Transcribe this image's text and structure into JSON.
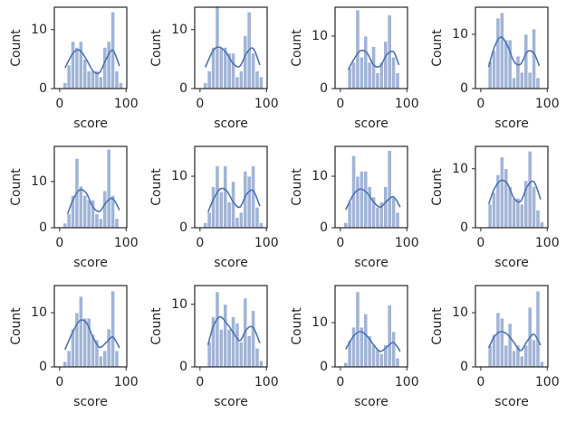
{
  "chart_data": [
    {
      "type": "histogram",
      "xlabel": "score",
      "ylabel": "Count",
      "color": "#a1b4d6",
      "kde_color": "#4c72b0",
      "bins": [
        5,
        11,
        17,
        23,
        29,
        35,
        41,
        47,
        53,
        59,
        65,
        71,
        77,
        83,
        89,
        95
      ],
      "values": [
        1,
        4,
        8,
        7,
        8,
        5,
        3,
        3,
        3,
        2,
        7,
        8,
        13,
        3,
        1
      ],
      "kde": {
        "x": [
          8,
          20,
          30,
          40,
          50,
          60,
          70,
          80,
          90
        ],
        "values": [
          3.5,
          6,
          6.5,
          5,
          3,
          2.7,
          5,
          6.5,
          3.8
        ]
      },
      "xlim": [
        -8,
        101
      ],
      "xticks": [
        0,
        100
      ],
      "ylim": [
        0,
        13.8
      ],
      "yticks": [
        0,
        10
      ]
    },
    {
      "type": "histogram",
      "xlabel": "score",
      "ylabel": "Count",
      "color": "#a1b4d6",
      "kde_color": "#4c72b0",
      "bins": [
        5,
        11,
        17,
        23,
        29,
        35,
        41,
        47,
        53,
        59,
        65,
        71,
        77,
        83,
        89,
        95
      ],
      "values": [
        1,
        3,
        7,
        14,
        7,
        7,
        6,
        6,
        2,
        3,
        9,
        13,
        6,
        3,
        2
      ],
      "kde": {
        "x": [
          8,
          20,
          30,
          40,
          50,
          60,
          70,
          80,
          90
        ],
        "values": [
          3.6,
          6.5,
          7,
          6,
          4.2,
          3.8,
          6,
          6.8,
          4
        ]
      },
      "xlim": [
        -8,
        101
      ],
      "xticks": [
        0,
        100
      ],
      "ylim": [
        0,
        13.8
      ],
      "yticks": [
        0,
        10
      ]
    },
    {
      "type": "histogram",
      "xlabel": "score",
      "ylabel": "Count",
      "color": "#a1b4d6",
      "kde_color": "#4c72b0",
      "bins": [
        5,
        11,
        17,
        23,
        29,
        35,
        41,
        47,
        53,
        59,
        65,
        71,
        77,
        83,
        89,
        95
      ],
      "values": [
        0,
        4,
        5,
        15,
        6,
        10,
        5,
        8,
        3,
        5,
        9,
        14,
        6,
        3,
        0
      ],
      "kde": {
        "x": [
          12,
          20,
          30,
          40,
          50,
          60,
          70,
          80,
          88
        ],
        "values": [
          3.6,
          5.5,
          7.2,
          6.8,
          4.5,
          4.3,
          6.5,
          7,
          4.5
        ]
      },
      "xlim": [
        -8,
        101
      ],
      "xticks": [
        0,
        100
      ],
      "ylim": [
        0,
        15.5
      ],
      "yticks": [
        0,
        10
      ]
    },
    {
      "type": "histogram",
      "xlabel": "score",
      "ylabel": "Count",
      "color": "#a1b4d6",
      "kde_color": "#4c72b0",
      "bins": [
        5,
        11,
        17,
        23,
        29,
        35,
        41,
        47,
        53,
        59,
        65,
        71,
        77,
        83,
        89,
        95
      ],
      "values": [
        0,
        5,
        7,
        13,
        14,
        9,
        9,
        2,
        6,
        3,
        10,
        3,
        11,
        2,
        0
      ],
      "kde": {
        "x": [
          12,
          20,
          30,
          40,
          50,
          60,
          70,
          80,
          88
        ],
        "values": [
          4,
          7.5,
          9.5,
          8,
          5,
          4.5,
          6.8,
          6.5,
          4.2
        ]
      },
      "xlim": [
        -8,
        101
      ],
      "xticks": [
        0,
        100
      ],
      "ylim": [
        0,
        15
      ],
      "yticks": [
        0,
        10
      ]
    },
    {
      "type": "histogram",
      "xlabel": "score",
      "ylabel": "Count",
      "color": "#a1b4d6",
      "kde_color": "#4c72b0",
      "bins": [
        5,
        11,
        17,
        23,
        29,
        35,
        41,
        47,
        53,
        59,
        65,
        71,
        77,
        83,
        89,
        95
      ],
      "values": [
        1,
        3,
        7,
        15,
        9,
        7,
        6,
        6,
        3,
        2,
        8,
        17,
        7,
        2,
        0
      ],
      "kde": {
        "x": [
          12,
          20,
          30,
          40,
          50,
          60,
          70,
          80,
          90
        ],
        "values": [
          3,
          6,
          8.2,
          7.5,
          4.5,
          3.5,
          5.5,
          6.3,
          3.8
        ]
      },
      "xlim": [
        -8,
        101
      ],
      "xticks": [
        0,
        100
      ],
      "ylim": [
        0,
        17.6
      ],
      "yticks": [
        0,
        10
      ]
    },
    {
      "type": "histogram",
      "xlabel": "score",
      "ylabel": "Count",
      "color": "#a1b4d6",
      "kde_color": "#4c72b0",
      "bins": [
        5,
        11,
        17,
        23,
        29,
        35,
        41,
        47,
        53,
        59,
        65,
        71,
        77,
        83,
        89,
        95
      ],
      "values": [
        1,
        3,
        8,
        12,
        7,
        12,
        5,
        9,
        2,
        3,
        11,
        10,
        12,
        4,
        1
      ],
      "kde": {
        "x": [
          12,
          20,
          30,
          40,
          50,
          60,
          70,
          80,
          90
        ],
        "values": [
          3,
          5.5,
          7.5,
          7.2,
          5,
          4,
          6.5,
          7.2,
          4.2
        ]
      },
      "xlim": [
        -8,
        101
      ],
      "xticks": [
        0,
        100
      ],
      "ylim": [
        0,
        15.8
      ],
      "yticks": [
        0,
        10
      ]
    },
    {
      "type": "histogram",
      "xlabel": "score",
      "ylabel": "Count",
      "color": "#a1b4d6",
      "kde_color": "#4c72b0",
      "bins": [
        5,
        11,
        17,
        23,
        29,
        35,
        41,
        47,
        53,
        59,
        65,
        71,
        77,
        83,
        89,
        95
      ],
      "values": [
        1,
        5,
        14,
        10,
        11,
        11,
        8,
        6,
        4,
        5,
        8,
        15,
        6,
        3,
        0
      ],
      "kde": {
        "x": [
          8,
          20,
          30,
          40,
          50,
          60,
          70,
          80,
          90
        ],
        "values": [
          3.5,
          6.5,
          7.5,
          6.8,
          5,
          4,
          5.2,
          6,
          4
        ]
      },
      "xlim": [
        -8,
        101
      ],
      "xticks": [
        0,
        100
      ],
      "ylim": [
        0,
        15.8
      ],
      "yticks": [
        0,
        10
      ]
    },
    {
      "type": "histogram",
      "xlabel": "score",
      "ylabel": "Count",
      "color": "#a1b4d6",
      "kde_color": "#4c72b0",
      "bins": [
        5,
        11,
        17,
        23,
        29,
        35,
        41,
        47,
        53,
        59,
        65,
        71,
        77,
        83,
        89,
        95
      ],
      "values": [
        0,
        4,
        6,
        9,
        12,
        10,
        7,
        5,
        5,
        4,
        8,
        13,
        7,
        3,
        1
      ],
      "kde": {
        "x": [
          12,
          20,
          30,
          40,
          50,
          60,
          70,
          80,
          90
        ],
        "values": [
          4,
          6.5,
          8,
          7.5,
          5,
          4.5,
          7,
          7.8,
          4.8
        ]
      },
      "xlim": [
        -8,
        101
      ],
      "xticks": [
        0,
        100
      ],
      "ylim": [
        0,
        13.8
      ],
      "yticks": [
        0,
        10
      ]
    },
    {
      "type": "histogram",
      "xlabel": "score",
      "ylabel": "Count",
      "color": "#a1b4d6",
      "kde_color": "#4c72b0",
      "bins": [
        5,
        11,
        17,
        23,
        29,
        35,
        41,
        47,
        53,
        59,
        65,
        71,
        77,
        83,
        89,
        95
      ],
      "values": [
        1,
        3,
        7,
        10,
        13,
        9,
        9,
        6,
        5,
        2,
        3,
        7,
        14,
        3,
        0
      ],
      "kde": {
        "x": [
          8,
          20,
          30,
          40,
          50,
          60,
          70,
          80,
          90
        ],
        "values": [
          3.2,
          6.5,
          8.5,
          8.2,
          5.5,
          3.6,
          4.5,
          5.5,
          3.5
        ]
      },
      "xlim": [
        -8,
        101
      ],
      "xticks": [
        0,
        100
      ],
      "ylim": [
        0,
        15
      ],
      "yticks": [
        0,
        10
      ]
    },
    {
      "type": "histogram",
      "xlabel": "score",
      "ylabel": "Count",
      "color": "#a1b4d6",
      "kde_color": "#4c72b0",
      "bins": [
        5,
        11,
        17,
        23,
        29,
        35,
        41,
        47,
        53,
        59,
        65,
        71,
        77,
        83,
        89,
        95
      ],
      "values": [
        0,
        4,
        8,
        12,
        6,
        10,
        6,
        8,
        7,
        4,
        11,
        5,
        9,
        3,
        1
      ],
      "kde": {
        "x": [
          12,
          20,
          30,
          40,
          50,
          60,
          70,
          80,
          90
        ],
        "values": [
          3.5,
          6.5,
          8,
          7,
          5.5,
          4.2,
          6,
          6.3,
          3.8
        ]
      },
      "xlim": [
        -8,
        101
      ],
      "xticks": [
        0,
        100
      ],
      "ylim": [
        0,
        13
      ],
      "yticks": [
        0,
        10
      ]
    },
    {
      "type": "histogram",
      "xlabel": "score",
      "ylabel": "Count",
      "color": "#a1b4d6",
      "kde_color": "#4c72b0",
      "bins": [
        5,
        11,
        17,
        23,
        29,
        35,
        41,
        47,
        53,
        59,
        65,
        71,
        77,
        83,
        89,
        95
      ],
      "values": [
        1,
        6,
        9,
        17,
        9,
        12,
        7,
        5,
        4,
        3,
        5,
        14,
        8,
        2,
        0
      ],
      "kde": {
        "x": [
          8,
          20,
          30,
          40,
          50,
          60,
          70,
          80,
          90
        ],
        "values": [
          4,
          7,
          8,
          7,
          5,
          3.5,
          4.5,
          5.5,
          3.5
        ]
      },
      "xlim": [
        -8,
        101
      ],
      "xticks": [
        0,
        100
      ],
      "ylim": [
        0,
        18.4
      ],
      "yticks": [
        0,
        10
      ]
    },
    {
      "type": "histogram",
      "xlabel": "score",
      "ylabel": "Count",
      "color": "#a1b4d6",
      "kde_color": "#4c72b0",
      "bins": [
        5,
        11,
        17,
        23,
        29,
        35,
        41,
        47,
        53,
        59,
        65,
        71,
        77,
        83,
        89,
        95
      ],
      "values": [
        0,
        4,
        6,
        10,
        9,
        4,
        8,
        3,
        4,
        2,
        4,
        11,
        5,
        14,
        1
      ],
      "kde": {
        "x": [
          12,
          20,
          30,
          40,
          50,
          60,
          70,
          80,
          90
        ],
        "values": [
          3.5,
          5.5,
          6.5,
          6,
          4.5,
          3,
          4.8,
          6,
          4
        ]
      },
      "xlim": [
        -8,
        101
      ],
      "xticks": [
        0,
        100
      ],
      "ylim": [
        0,
        15
      ],
      "yticks": [
        0,
        10
      ]
    }
  ]
}
